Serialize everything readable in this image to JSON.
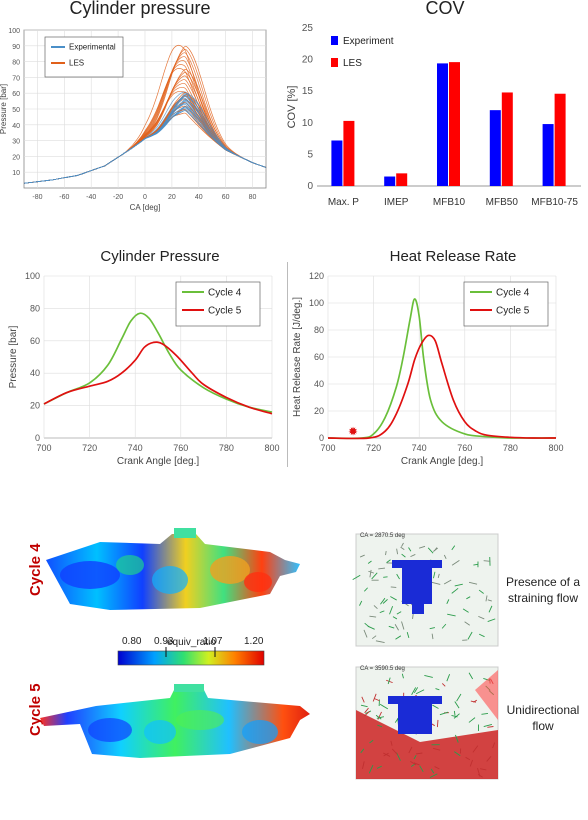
{
  "chart_data": [
    {
      "id": "cyl-pressure-top",
      "type": "line",
      "title": "Cylinder pressure",
      "xlabel": "CA [deg]",
      "ylabel": "Pressure [bar]",
      "xlim": [
        -90,
        90
      ],
      "ylim": [
        0,
        100
      ],
      "xticks": [
        -80,
        -60,
        -40,
        -20,
        0,
        20,
        40,
        60,
        80
      ],
      "yticks": [
        10,
        20,
        30,
        40,
        50,
        60,
        70,
        80,
        90,
        100
      ],
      "legend": "top-left",
      "series": [
        {
          "name": "Experimental",
          "color": "#4a8fc8"
        },
        {
          "name": "LES",
          "color": "#e0601a"
        }
      ],
      "base_curve": {
        "x": [
          -90,
          -70,
          -50,
          -30,
          -10,
          0,
          10,
          20,
          30,
          40,
          60,
          80,
          90
        ],
        "y": [
          3,
          5,
          8,
          14,
          25,
          31,
          34,
          40,
          43,
          37,
          24,
          16,
          13
        ]
      },
      "peak_envelope": {
        "experimental_range": [
          46,
          58
        ],
        "les_range": [
          45,
          89
        ]
      }
    },
    {
      "id": "cov",
      "type": "bar",
      "title": "COV",
      "xlabel": "",
      "ylabel": "COV [%]",
      "ylim": [
        0,
        25
      ],
      "yticks": [
        0,
        5,
        10,
        15,
        20,
        25
      ],
      "legend": "top-left",
      "categories": [
        "Max. P",
        "IMEP",
        "MFB10",
        "MFB50",
        "MFB10-75"
      ],
      "series": [
        {
          "name": "Experiment",
          "color": "#0000ff",
          "values": [
            7.2,
            1.5,
            19.4,
            12.0,
            9.8
          ]
        },
        {
          "name": "LES",
          "color": "#ff0000",
          "values": [
            10.3,
            2.0,
            19.6,
            14.8,
            14.6
          ]
        }
      ]
    },
    {
      "id": "cyl-pressure-cycles",
      "type": "line",
      "title": "Cylinder Pressure",
      "xlabel": "Crank Angle [deg.]",
      "ylabel": "Pressure [bar]",
      "xlim": [
        700,
        800
      ],
      "ylim": [
        0,
        100
      ],
      "xticks": [
        700,
        720,
        740,
        760,
        780,
        800
      ],
      "yticks": [
        0,
        20,
        40,
        60,
        80,
        100
      ],
      "legend": "top-right",
      "series": [
        {
          "name": "Cycle 4",
          "color": "#6abf3a",
          "x": [
            700,
            710,
            720,
            728,
            734,
            738,
            742,
            746,
            750,
            755,
            760,
            770,
            780,
            790,
            800
          ],
          "y": [
            21,
            28,
            34,
            45,
            61,
            72,
            77,
            74,
            65,
            52,
            42,
            31,
            24,
            19,
            16
          ]
        },
        {
          "name": "Cycle 5",
          "color": "#e01010",
          "x": [
            700,
            710,
            720,
            728,
            734,
            740,
            744,
            748,
            752,
            758,
            765,
            770,
            780,
            790,
            800
          ],
          "y": [
            21,
            28,
            32,
            35,
            40,
            48,
            56,
            59,
            58,
            51,
            40,
            33,
            25,
            19,
            15
          ]
        }
      ]
    },
    {
      "id": "heat-release",
      "type": "line",
      "title": "Heat Release Rate",
      "xlabel": "Crank Angle [deg.]",
      "ylabel": "Heat Release Rate [J/deg.]",
      "xlim": [
        700,
        800
      ],
      "ylim": [
        0,
        120
      ],
      "xticks": [
        700,
        720,
        740,
        760,
        780,
        800
      ],
      "yticks": [
        0,
        20,
        40,
        60,
        80,
        100,
        120
      ],
      "legend": "top-right",
      "spark_marker": {
        "x": 711,
        "y": 5,
        "color": "#e01010"
      },
      "series": [
        {
          "name": "Cycle 4",
          "color": "#6abf3a",
          "x": [
            700,
            715,
            720,
            725,
            730,
            733,
            736,
            738,
            740,
            742,
            745,
            750,
            760,
            770,
            780,
            800
          ],
          "y": [
            0,
            0,
            3,
            15,
            38,
            60,
            88,
            103,
            90,
            58,
            28,
            12,
            3,
            1,
            0,
            0
          ]
        },
        {
          "name": "Cycle 5",
          "color": "#e01010",
          "x": [
            700,
            718,
            725,
            730,
            735,
            738,
            741,
            744,
            747,
            750,
            755,
            760,
            765,
            770,
            780,
            790,
            800
          ],
          "y": [
            0,
            0,
            5,
            18,
            40,
            58,
            70,
            76,
            72,
            55,
            28,
            12,
            5,
            2,
            0.5,
            0,
            0
          ]
        }
      ]
    }
  ],
  "bottom": {
    "cycle4_label": "Cycle 4",
    "cycle5_label": "Cycle 5",
    "colorbar": {
      "title": "equiv_ratio",
      "ticks": [
        "0.80",
        "0.93",
        "1.07",
        "1.20"
      ]
    },
    "ca_top": "CA = 2870.5 deg",
    "ca_bottom": "CA = 3590.5 deg",
    "note_top": "Presence of a straining flow",
    "note_bottom": "Unidirectional flow"
  }
}
